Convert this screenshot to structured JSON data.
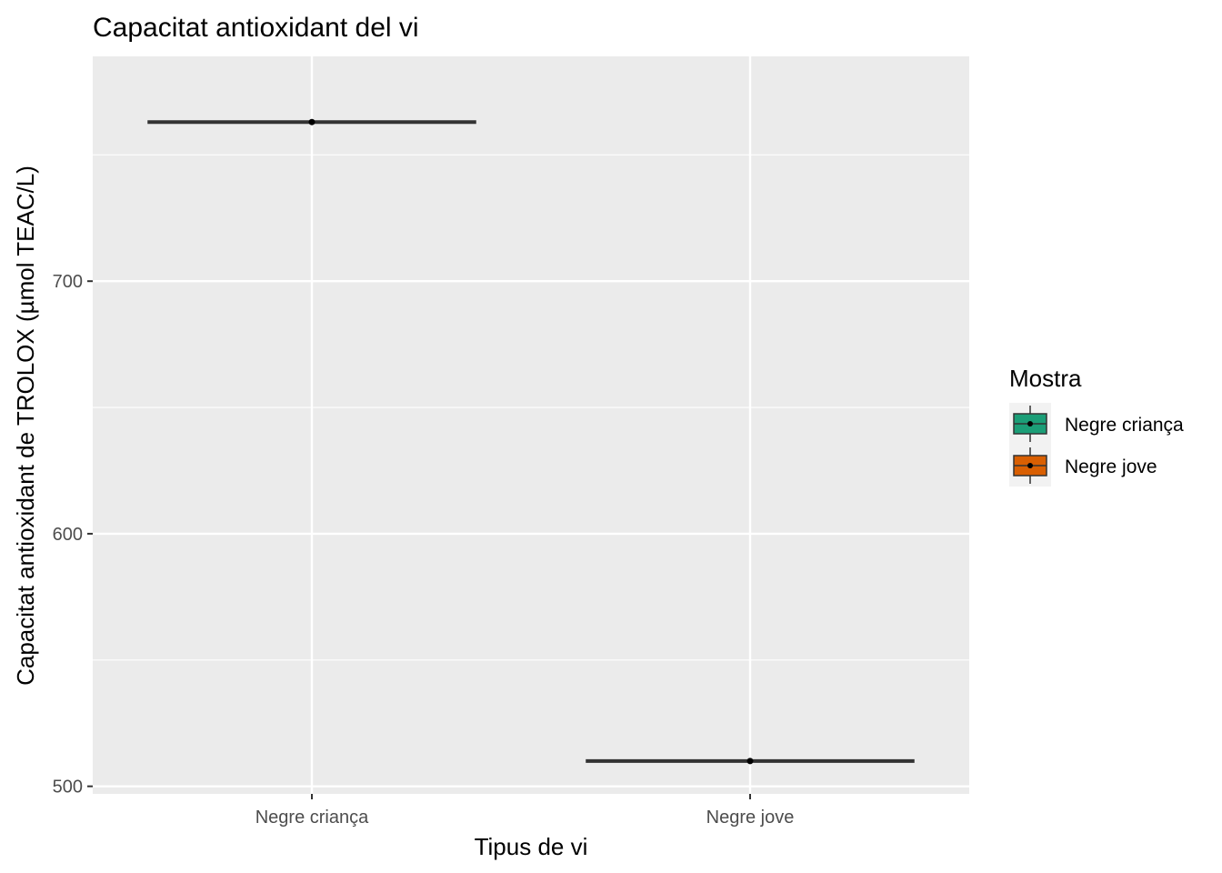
{
  "chart_data": {
    "type": "boxplot",
    "title": "Capacitat antioxidant del vi",
    "xlabel": "Tipus de vi",
    "ylabel": "Capacitat antioxidant de TROLOX (µmol TEAC/L)",
    "categories": [
      "Negre criança",
      "Negre jove"
    ],
    "series": [
      {
        "name": "Negre criança",
        "color": "#1B9E77",
        "median": 763,
        "mean": 763
      },
      {
        "name": "Negre jove",
        "color": "#D95F02",
        "median": 510,
        "mean": 510
      }
    ],
    "ylim": [
      497,
      789
    ],
    "yticks": [
      500,
      600,
      700
    ],
    "grid": true,
    "legend": {
      "title": "Mostra",
      "position": "right",
      "items": [
        "Negre criança",
        "Negre jove"
      ]
    }
  }
}
